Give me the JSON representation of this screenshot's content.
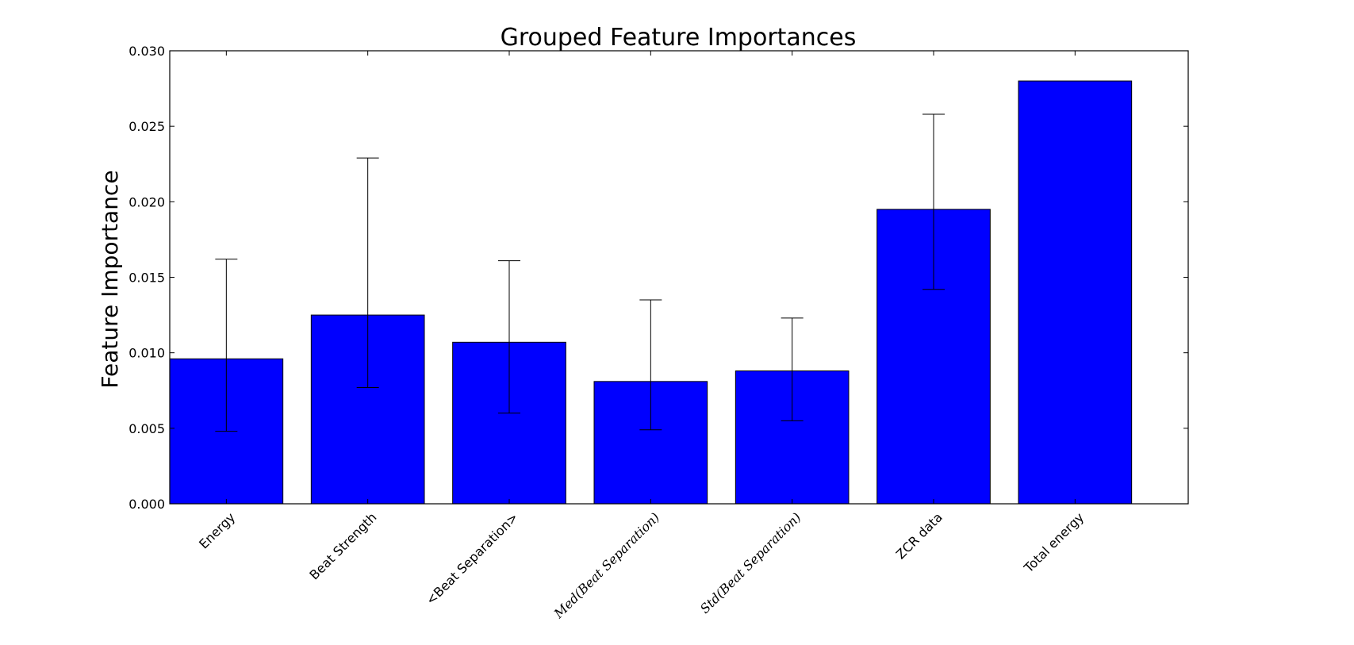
{
  "chart_data": {
    "type": "bar",
    "title": "Grouped Feature Importances",
    "xlabel": "",
    "ylabel": "Feature Importance",
    "ylim": [
      0,
      0.03
    ],
    "yticks": [
      "0.000",
      "0.005",
      "0.010",
      "0.015",
      "0.020",
      "0.025",
      "0.030"
    ],
    "grid": false,
    "bar_color": "#0000ff",
    "categories": [
      "Energy",
      "Beat Strength",
      "<Beat Separation>",
      "Med(Beat Separation)",
      "Std(Beat Separation)",
      "ZCR data",
      "Total energy"
    ],
    "category_style": [
      "plain",
      "plain",
      "plain",
      "math",
      "math",
      "plain",
      "plain"
    ],
    "values": [
      0.0096,
      0.0125,
      0.0107,
      0.0081,
      0.0088,
      0.0195,
      0.028
    ],
    "error_low": [
      0.0048,
      0.0077,
      0.006,
      0.0049,
      0.0055,
      0.0142,
      null
    ],
    "error_high": [
      0.0162,
      0.0229,
      0.0161,
      0.0135,
      0.0123,
      0.0258,
      null
    ]
  }
}
